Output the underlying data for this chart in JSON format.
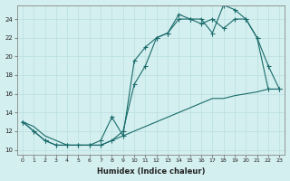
{
  "xlabel": "Humidex (Indice chaleur)",
  "bg_color": "#d4efef",
  "line_color": "#1a6b6b",
  "grid_color": "#b8dede",
  "xlim": [
    -0.5,
    23.5
  ],
  "ylim": [
    9.5,
    25.5
  ],
  "xticks": [
    0,
    1,
    2,
    3,
    4,
    5,
    6,
    7,
    8,
    9,
    10,
    11,
    12,
    13,
    14,
    15,
    16,
    17,
    18,
    19,
    20,
    21,
    22,
    23
  ],
  "yticks": [
    10,
    12,
    14,
    16,
    18,
    20,
    22,
    24
  ],
  "line1_x": [
    0,
    1,
    2,
    3,
    4,
    5,
    6,
    7,
    8,
    9,
    10,
    11,
    12,
    13,
    14,
    15,
    16,
    17,
    18,
    19,
    20,
    21,
    22,
    23
  ],
  "line1_y": [
    13,
    12,
    11,
    10.5,
    10.5,
    10.5,
    10.5,
    10.5,
    11,
    12,
    17,
    19,
    22,
    22.5,
    24,
    24,
    23.5,
    24,
    23,
    24,
    24,
    22,
    16.5,
    16.5
  ],
  "line2_x": [
    0,
    1,
    2,
    3,
    4,
    5,
    6,
    7,
    8,
    9,
    10,
    11,
    12,
    13,
    14,
    15,
    16,
    17,
    18,
    19,
    20,
    21,
    22,
    23
  ],
  "line2_y": [
    13,
    12,
    11,
    10.5,
    10.5,
    10.5,
    10.5,
    11,
    13.5,
    11.5,
    19.5,
    21,
    22,
    22.5,
    24.5,
    24,
    24,
    22.5,
    25.5,
    25,
    24,
    22,
    19,
    16.5
  ],
  "line3_x": [
    0,
    1,
    2,
    3,
    4,
    5,
    6,
    7,
    8,
    9,
    10,
    11,
    12,
    13,
    14,
    15,
    16,
    17,
    18,
    19,
    20,
    21,
    22,
    23
  ],
  "line3_y": [
    13,
    12.5,
    11.5,
    11,
    10.5,
    10.5,
    10.5,
    10.5,
    11,
    11.5,
    12,
    12.5,
    13,
    13.5,
    14,
    14.5,
    15,
    15.5,
    15.5,
    15.8,
    16,
    16.2,
    16.5,
    16.5
  ]
}
